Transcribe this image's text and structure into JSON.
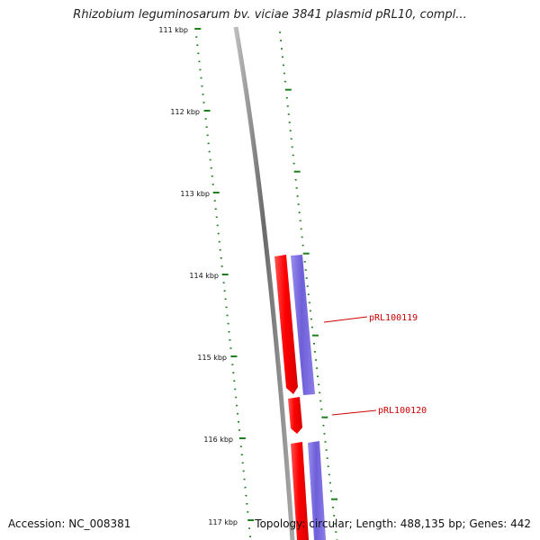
{
  "title": "Rhizobium leguminosarum bv. viciae 3841 plasmid pRL10, compl...",
  "accession": "Accession: NC_008381",
  "topology": "Topology: circular; Length: 488,135 bp; Genes: 442",
  "colors": {
    "background": "#ffffff",
    "tick": "#1e7f1e",
    "backbone": "#808080",
    "forward_gene": "#ff0000",
    "reverse_gene": "#7766dd",
    "label": "#cc0000"
  },
  "ticks": [
    {
      "label": "111 kbp"
    },
    {
      "label": "112 kbp"
    },
    {
      "label": "113 kbp"
    },
    {
      "label": "114 kbp"
    },
    {
      "label": "115 kbp"
    },
    {
      "label": "116 kbp"
    },
    {
      "label": "117 kbp"
    }
  ],
  "gene_labels": [
    {
      "label": "pRL100119"
    },
    {
      "label": "pRL100120"
    }
  ]
}
